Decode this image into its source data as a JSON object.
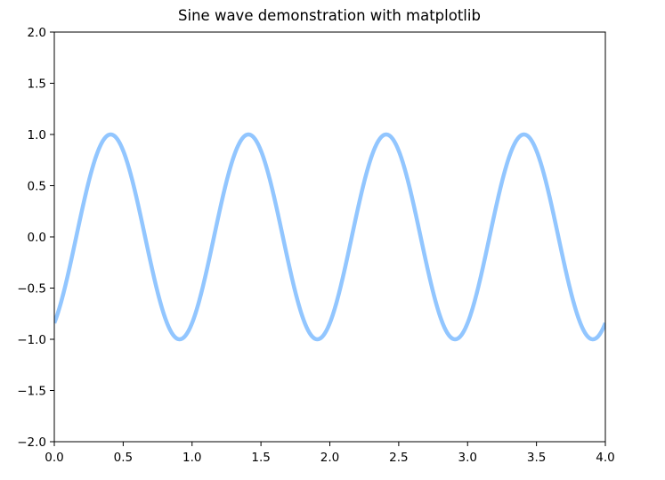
{
  "chart_data": {
    "type": "line",
    "title": "Sine wave demonstration with matplotlib",
    "xlabel": "",
    "ylabel": "",
    "xlim": [
      0.0,
      4.0
    ],
    "ylim": [
      -2.0,
      2.0
    ],
    "x_ticks": [
      "0.0",
      "0.5",
      "1.0",
      "1.5",
      "2.0",
      "2.5",
      "3.0",
      "3.5",
      "4.0"
    ],
    "y_ticks": [
      "2.0",
      "1.5",
      "1.0",
      "0.5",
      "0.0",
      "−0.5",
      "−1.0",
      "−1.5",
      "−2.0"
    ],
    "grid": false,
    "legend": "none",
    "series": [
      {
        "color": "#92c6ff",
        "function": "sin(2*pi*x - 1.0)",
        "x_start": 0.0,
        "x_end": 4.0,
        "peaks_x": [
          0.41,
          1.41,
          2.41,
          3.41
        ],
        "troughs_x": [
          0.91,
          1.91,
          2.91,
          3.91
        ],
        "y_at_x0": -0.84,
        "y_at_x4": -0.84
      }
    ]
  }
}
